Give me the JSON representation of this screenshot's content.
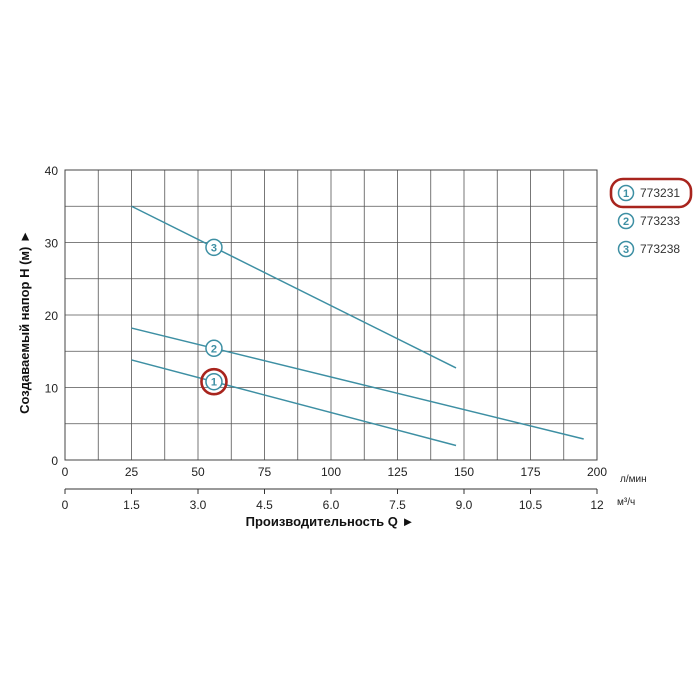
{
  "chart_data": {
    "type": "line",
    "title": "",
    "ylabel": "Создаваемый напор H (м) ►",
    "xlabel": "Производительность Q ►",
    "x_unit": "л/мин",
    "x2_unit": "м³/ч",
    "xlim": [
      0,
      200
    ],
    "ylim": [
      0,
      40
    ],
    "x_ticks": [
      "0",
      "25",
      "50",
      "75",
      "100",
      "125",
      "150",
      "175",
      "200"
    ],
    "x2_ticks": [
      "0",
      "1.5",
      "3.0",
      "4.5",
      "6.0",
      "7.5",
      "9.0",
      "10.5",
      "12"
    ],
    "y_ticks": [
      "0",
      "10",
      "20",
      "30",
      "40"
    ],
    "grid": true,
    "legend_position": "right",
    "highlight_color": "#a8241d",
    "line_color": "#3d8fa3",
    "series": [
      {
        "name": "773231",
        "marker": "1",
        "x": [
          25,
          147
        ],
        "y": [
          13.8,
          2
        ],
        "marker_x": 56,
        "highlighted": true
      },
      {
        "name": "773233",
        "marker": "2",
        "x": [
          25,
          195
        ],
        "y": [
          18.2,
          2.9
        ],
        "marker_x": 56,
        "highlighted": false
      },
      {
        "name": "773238",
        "marker": "3",
        "x": [
          25,
          147
        ],
        "y": [
          35,
          12.7
        ],
        "marker_x": 56,
        "highlighted": false
      }
    ]
  }
}
